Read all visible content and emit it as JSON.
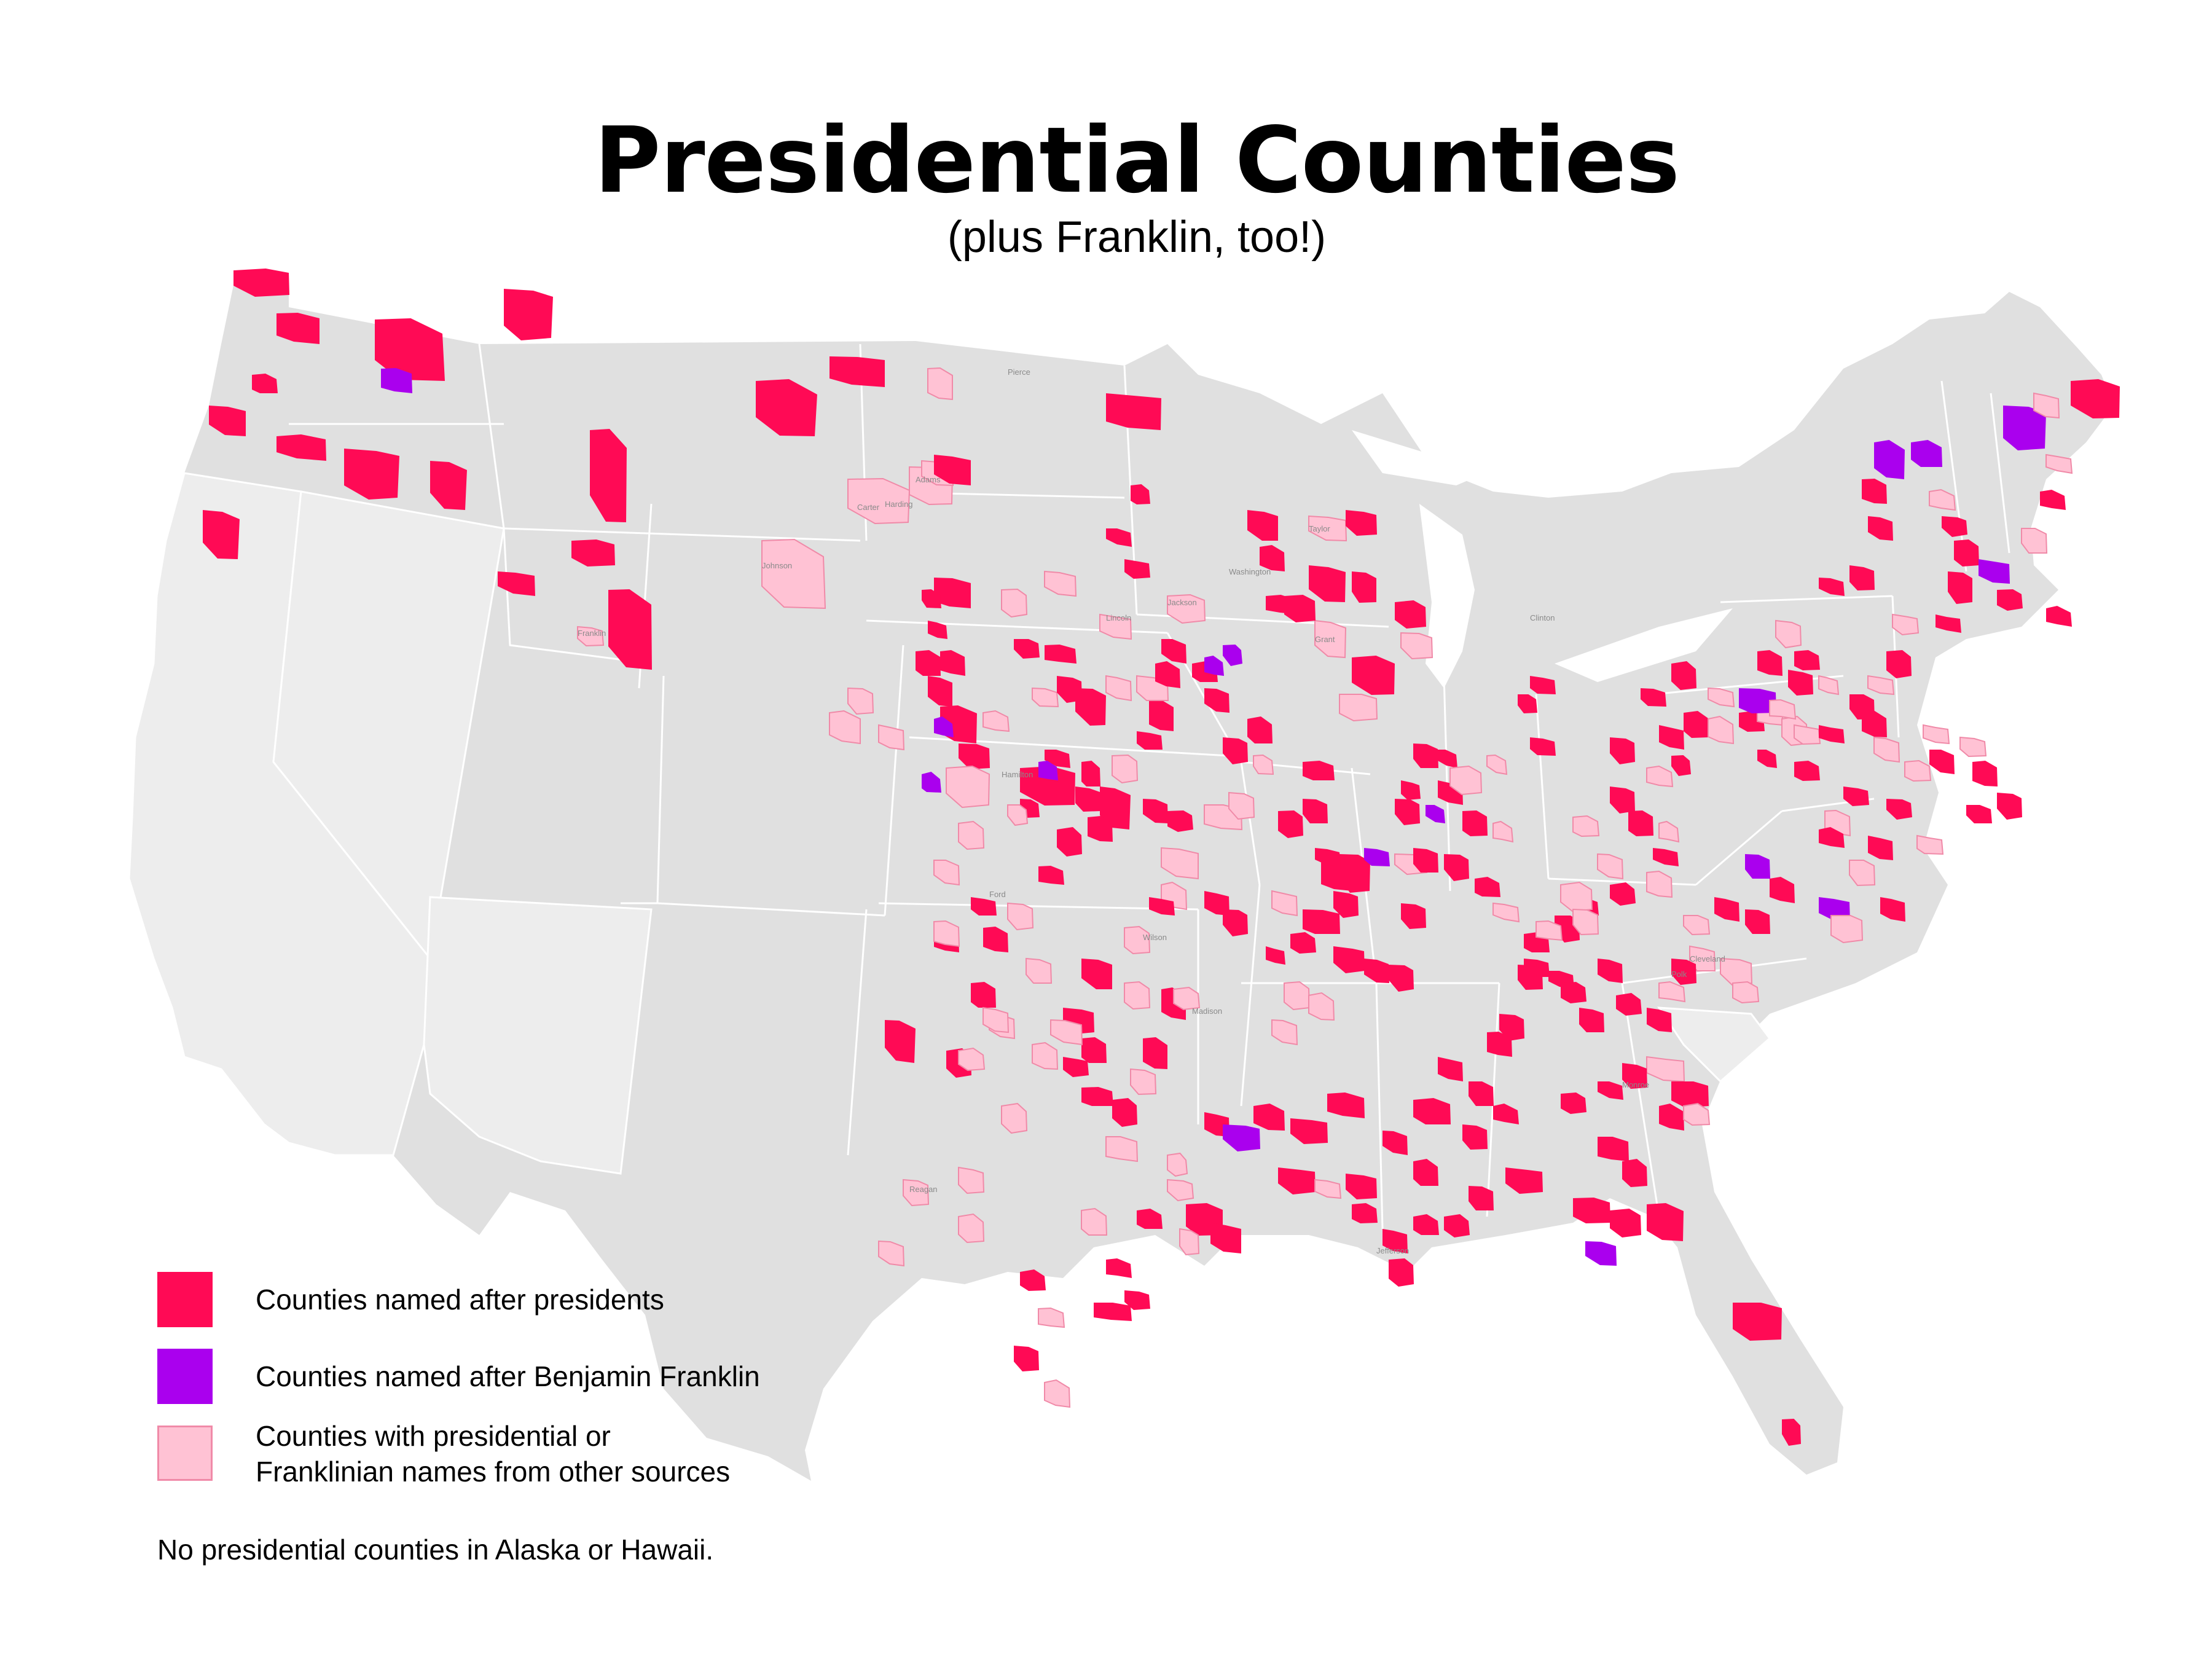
{
  "title": "Presidential Counties",
  "subtitle": "(plus Franklin, too!)",
  "colors": {
    "president": "#ff0a55",
    "franklin": "#aa00ee",
    "other": "#ffc2d4",
    "other_border": "#f08aa8",
    "land": "#e0e0e0",
    "excluded_states": "#ededed",
    "border": "#ffffff",
    "label": "#8a8a8a"
  },
  "legend": [
    {
      "label": "Counties named after presidents",
      "kind": "president"
    },
    {
      "label": "Counties named after Benjamin Franklin",
      "kind": "franklin"
    },
    {
      "label": "Counties with presidential or\nFranklinian names from other sources",
      "kind": "other"
    }
  ],
  "note": "No presidential counties in Alaska or Hawaii.",
  "county_labels": [
    "Pierce",
    "Carter",
    "Harding",
    "Adams",
    "Johnson",
    "Franklin",
    "Lincoln",
    "Jackson",
    "Washington",
    "Taylor",
    "Grant",
    "Clinton",
    "Hamilton",
    "Ford",
    "Wilson",
    "Polk",
    "Cleveland",
    "Reagan",
    "Madison",
    "Monroe",
    "Jefferson"
  ]
}
